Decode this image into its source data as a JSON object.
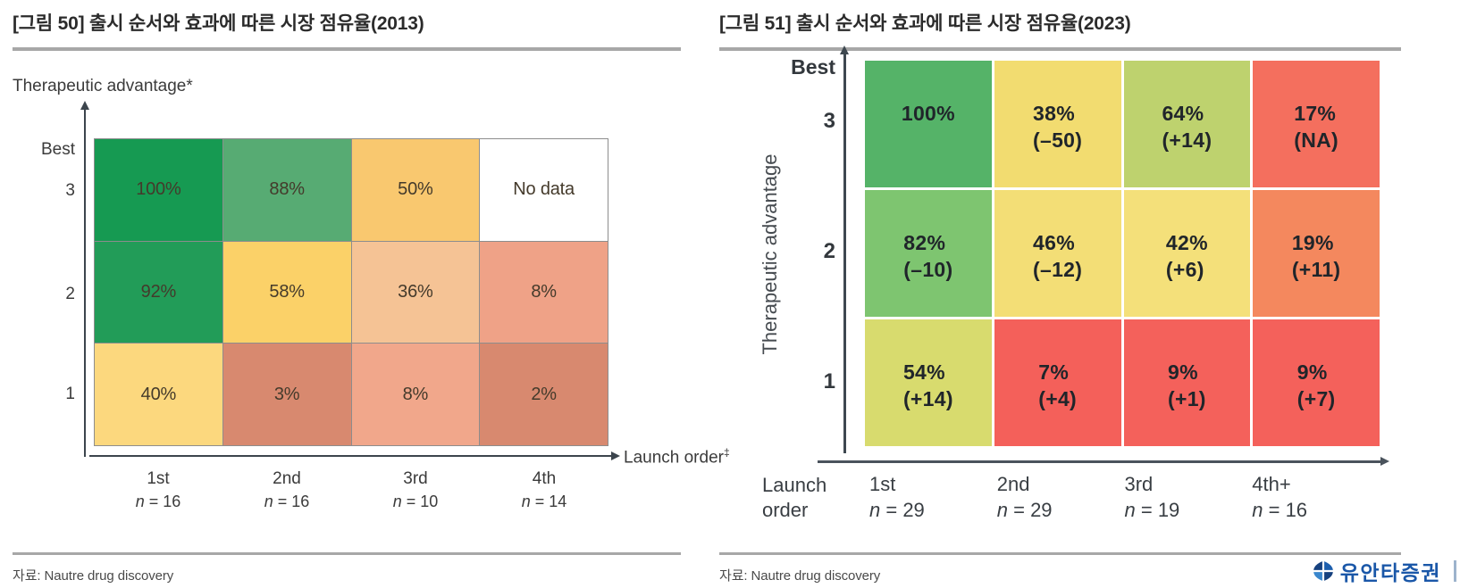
{
  "left_panel": {
    "title": "[그림 50] 출시 순서와 효과에 따른 시장 점유율(2013)",
    "source": "자료: Nautre drug discovery"
  },
  "right_panel": {
    "title": "[그림 51] 출시 순서와 효과에 따른 시장 점유율(2023)",
    "source": "자료: Nautre drug discovery"
  },
  "brand": {
    "name": "유안타증권"
  },
  "chart_data": [
    {
      "type": "heatmap",
      "title": "[그림 50] 출시 순서와 효과에 따른 시장 점유율(2013)",
      "xlabel": "Launch order",
      "xlabel_sup": "‡",
      "ylabel": "Therapeutic advantage*",
      "y_top_label": "Best",
      "x_categories": [
        "1st",
        "2nd",
        "3rd",
        "4th"
      ],
      "x_sample_sizes": [
        "n = 16",
        "n = 16",
        "n = 10",
        "n = 14"
      ],
      "y_categories": [
        "3",
        "2",
        "1"
      ],
      "rows": [
        {
          "y": "3",
          "values": [
            "100%",
            "88%",
            "50%",
            "No data"
          ],
          "colors": [
            "#169a52",
            "#57ab73",
            "#f9c86f",
            "#ffffff"
          ]
        },
        {
          "y": "2",
          "values": [
            "92%",
            "58%",
            "36%",
            "8%"
          ],
          "colors": [
            "#229c58",
            "#fbd168",
            "#f5c395",
            "#efa287"
          ]
        },
        {
          "y": "1",
          "values": [
            "40%",
            "3%",
            "8%",
            "2%"
          ],
          "colors": [
            "#fcd87e",
            "#d8896f",
            "#f1a78b",
            "#d8896f"
          ]
        }
      ]
    },
    {
      "type": "heatmap",
      "title": "[그림 51] 출시 순서와 효과에 따른 시장 점유율(2023)",
      "xlabel": "Launch order",
      "ylabel": "Therapeutic advantage",
      "y_top_label": "Best",
      "x_categories": [
        "1st",
        "2nd",
        "3rd",
        "4th+"
      ],
      "x_sample_sizes": [
        "n = 29",
        "n = 29",
        "n = 19",
        "n = 16"
      ],
      "y_categories": [
        "3",
        "2",
        "1"
      ],
      "rows": [
        {
          "y": "3",
          "values": [
            "100%",
            "38%",
            "64%",
            "17%"
          ],
          "deltas": [
            "",
            "(–50)",
            "(+14)",
            "(NA)"
          ],
          "colors": [
            "#55b368",
            "#f2dc70",
            "#bed26e",
            "#f46f5e"
          ]
        },
        {
          "y": "2",
          "values": [
            "82%",
            "46%",
            "42%",
            "19%"
          ],
          "deltas": [
            "(–10)",
            "(–12)",
            "(+6)",
            "(+11)"
          ],
          "colors": [
            "#7ec570",
            "#f3de76",
            "#f4e07a",
            "#f4885e"
          ]
        },
        {
          "y": "1",
          "values": [
            "54%",
            "7%",
            "9%",
            "9%"
          ],
          "deltas": [
            "(+14)",
            "(+4)",
            "(+1)",
            "(+7)"
          ],
          "colors": [
            "#d8db6e",
            "#f4605a",
            "#f4615b",
            "#f4615b"
          ]
        }
      ]
    }
  ]
}
